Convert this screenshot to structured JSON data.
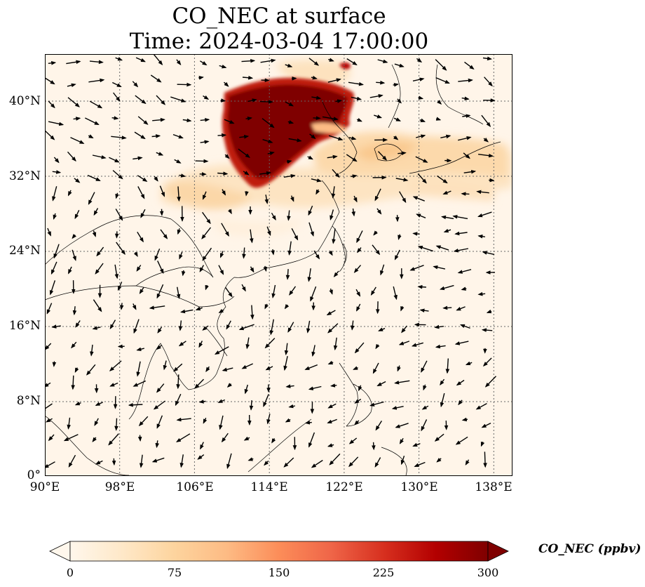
{
  "title": {
    "line1": "CO_NEC at surface",
    "line2": "Time: 2024-03-04 17:00:00"
  },
  "map": {
    "lon_range": [
      90,
      140
    ],
    "lat_range": [
      0,
      45
    ],
    "gridlines": true,
    "y_ticks": [
      {
        "value": 40,
        "label": "40°N"
      },
      {
        "value": 32,
        "label": "32°N"
      },
      {
        "value": 24,
        "label": "24°N"
      },
      {
        "value": 16,
        "label": "16°N"
      },
      {
        "value": 8,
        "label": "8°N"
      },
      {
        "value": 0,
        "label": "0°"
      }
    ],
    "x_ticks": [
      {
        "value": 90,
        "label": "90°E"
      },
      {
        "value": 98,
        "label": "98°E"
      },
      {
        "value": 106,
        "label": "106°E"
      },
      {
        "value": 114,
        "label": "114°E"
      },
      {
        "value": 122,
        "label": "122°E"
      },
      {
        "value": 130,
        "label": "130°E"
      },
      {
        "value": 138,
        "label": "138°E"
      }
    ],
    "field": "CO_NEC",
    "wind_vectors": true
  },
  "colorbar": {
    "label": "CO_NEC (ppbv)",
    "min": 0,
    "max": 300,
    "extend": "both",
    "colormap": "OrRd",
    "ticks": [
      "0",
      "75",
      "150",
      "225",
      "300"
    ],
    "colors": [
      "#fff7ec",
      "#fee8c8",
      "#fdd49e",
      "#fdbb84",
      "#fc8d59",
      "#ef6548",
      "#d7301f",
      "#b30000",
      "#7f0000"
    ]
  }
}
